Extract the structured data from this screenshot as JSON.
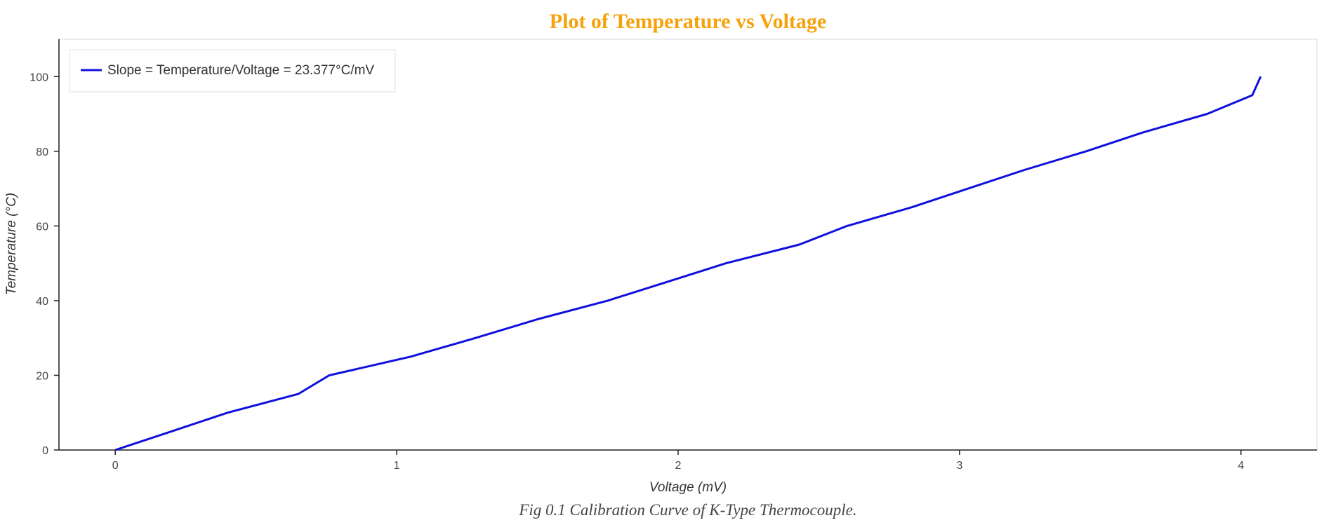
{
  "chart_data": {
    "type": "line",
    "title": "Plot of Temperature vs Voltage",
    "xlabel": "Voltage (mV)",
    "ylabel": "Temperature (°C)",
    "caption": "Fig 0.1 Calibration Curve of K-Type Thermocouple.",
    "xlim": [
      -0.2,
      4.27
    ],
    "ylim": [
      0,
      110
    ],
    "x_ticks": [
      0,
      1,
      2,
      3,
      4
    ],
    "y_ticks": [
      0,
      20,
      40,
      60,
      80,
      100
    ],
    "x_tick_labels": [
      "0",
      "1",
      "2",
      "3",
      "4"
    ],
    "y_tick_labels": [
      "0",
      "20",
      "40",
      "60",
      "80",
      "100"
    ],
    "grid": false,
    "legend_position": "top-left",
    "series": [
      {
        "name": "Slope = Temperature/Voltage = 23.377°C/mV",
        "color": "#1010dd",
        "x": [
          0,
          0.2,
          0.4,
          0.65,
          0.76,
          1.05,
          1.28,
          1.5,
          1.75,
          1.96,
          2.17,
          2.43,
          2.6,
          2.83,
          3.03,
          3.23,
          3.45,
          3.65,
          3.88,
          4.04,
          4.07
        ],
        "y": [
          0,
          5,
          10,
          15,
          20,
          25,
          30,
          35,
          40,
          45,
          50,
          55,
          60,
          65,
          70,
          75,
          80,
          85,
          90,
          95,
          100
        ]
      }
    ],
    "colors": {
      "title": "#f5a20c",
      "axis": "#222222",
      "tick_label": "#444444",
      "caption": "#444444",
      "frame": "#e6e6e6"
    }
  }
}
